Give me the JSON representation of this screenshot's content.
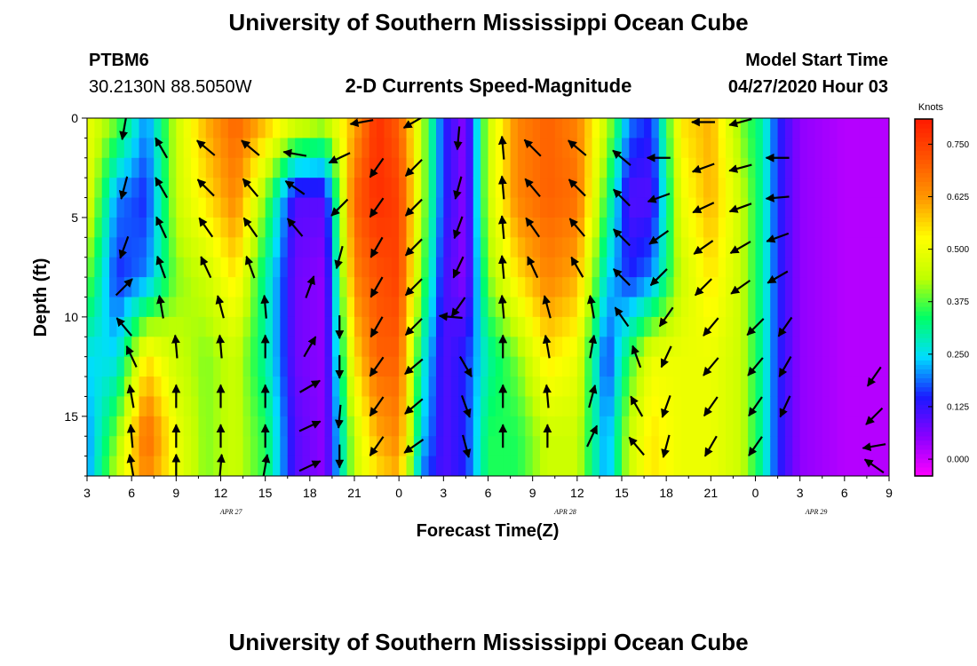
{
  "header": {
    "title": "University of Southern Mississippi Ocean Cube",
    "station": "PTBM6",
    "coords": "30.2130N 88.5050W",
    "subtitle": "2-D Currents Speed-Magnitude",
    "start_label": "Model Start Time",
    "start_value": "04/27/2020 Hour 03"
  },
  "footer": {
    "title": "University of Southern Mississippi Ocean Cube"
  },
  "colors": {
    "scale": [
      "#ff00ff",
      "#8a00ff",
      "#1a1aff",
      "#00ddff",
      "#00ff66",
      "#c0ff00",
      "#ffff00",
      "#ff9900",
      "#ff5500",
      "#ff1a00"
    ]
  },
  "chart_data": {
    "type": "heatmap",
    "title": "2-D Currents Speed-Magnitude",
    "xlabel": "Forecast Time(Z)",
    "ylabel": "Depth (ft)",
    "xlim": [
      0,
      54
    ],
    "ylim": [
      0,
      18
    ],
    "x_ticks": [
      0,
      3,
      6,
      9,
      12,
      15,
      18,
      21,
      24,
      27,
      30,
      33,
      36,
      39,
      42,
      45,
      48,
      51,
      54
    ],
    "x_tick_labels": [
      "3",
      "6",
      "9",
      "12",
      "15",
      "18",
      "21",
      "0",
      "3",
      "6",
      "9",
      "12",
      "15",
      "18",
      "21",
      "0",
      "3",
      "6",
      "9"
    ],
    "x_date_labels": [
      {
        "x": 9.7,
        "text": "APR 27"
      },
      {
        "x": 32.2,
        "text": "APR 28"
      },
      {
        "x": 49.1,
        "text": "APR 29"
      }
    ],
    "y_ticks": [
      0,
      5,
      10,
      15
    ],
    "y_tick_labels": [
      "0",
      "5",
      "10",
      "15"
    ],
    "colorbar": {
      "unit": "Knots",
      "range": [
        -0.04,
        0.81
      ],
      "ticks": [
        0.0,
        0.125,
        0.25,
        0.375,
        0.5,
        0.625,
        0.75
      ],
      "tick_labels": [
        "0.000",
        "0.125",
        "0.250",
        "0.375",
        "0.500",
        "0.625",
        "0.750"
      ]
    },
    "speed_profile": {
      "depth_levels_ft": [
        0,
        4,
        8,
        12,
        16,
        18
      ],
      "columns": [
        {
          "x": 0,
          "speeds": [
            0.5,
            0.5,
            0.4,
            0.25,
            0.2,
            0.2
          ]
        },
        {
          "x": 2,
          "speeds": [
            0.4,
            0.2,
            0.15,
            0.25,
            0.4,
            0.45
          ]
        },
        {
          "x": 4,
          "speeds": [
            0.2,
            0.15,
            0.2,
            0.55,
            0.7,
            0.65
          ]
        },
        {
          "x": 6,
          "speeds": [
            0.45,
            0.45,
            0.4,
            0.45,
            0.5,
            0.5
          ]
        },
        {
          "x": 8,
          "speeds": [
            0.6,
            0.55,
            0.45,
            0.4,
            0.4,
            0.4
          ]
        },
        {
          "x": 10,
          "speeds": [
            0.7,
            0.65,
            0.55,
            0.45,
            0.45,
            0.45
          ]
        },
        {
          "x": 12,
          "speeds": [
            0.6,
            0.4,
            0.3,
            0.3,
            0.35,
            0.35
          ]
        },
        {
          "x": 14,
          "speeds": [
            0.5,
            0.1,
            0.08,
            0.08,
            0.1,
            0.1
          ]
        },
        {
          "x": 16,
          "speeds": [
            0.45,
            0.1,
            0.05,
            0.05,
            0.05,
            0.05
          ]
        },
        {
          "x": 18,
          "speeds": [
            0.6,
            0.7,
            0.65,
            0.55,
            0.45,
            0.45
          ]
        },
        {
          "x": 19.5,
          "speeds": [
            0.78,
            0.78,
            0.72,
            0.7,
            0.6,
            0.55
          ]
        },
        {
          "x": 21,
          "speeds": [
            0.7,
            0.75,
            0.75,
            0.7,
            0.65,
            0.6
          ]
        },
        {
          "x": 22.5,
          "speeds": [
            0.45,
            0.45,
            0.4,
            0.3,
            0.25,
            0.2
          ]
        },
        {
          "x": 24,
          "speeds": [
            0.15,
            0.15,
            0.12,
            0.1,
            0.1,
            0.1
          ]
        },
        {
          "x": 25.5,
          "speeds": [
            0.05,
            0.05,
            0.05,
            0.15,
            0.15,
            0.15
          ]
        },
        {
          "x": 27,
          "speeds": [
            0.45,
            0.45,
            0.4,
            0.3,
            0.35,
            0.35
          ]
        },
        {
          "x": 29,
          "speeds": [
            0.65,
            0.65,
            0.55,
            0.4,
            0.35,
            0.35
          ]
        },
        {
          "x": 31,
          "speeds": [
            0.7,
            0.7,
            0.65,
            0.55,
            0.45,
            0.45
          ]
        },
        {
          "x": 33,
          "speeds": [
            0.65,
            0.68,
            0.6,
            0.5,
            0.45,
            0.45
          ]
        },
        {
          "x": 35,
          "speeds": [
            0.45,
            0.35,
            0.25,
            0.15,
            0.2,
            0.2
          ]
        },
        {
          "x": 36.5,
          "speeds": [
            0.2,
            0.1,
            0.15,
            0.35,
            0.45,
            0.45
          ]
        },
        {
          "x": 38,
          "speeds": [
            0.15,
            0.1,
            0.2,
            0.5,
            0.55,
            0.55
          ]
        },
        {
          "x": 40,
          "speeds": [
            0.55,
            0.5,
            0.45,
            0.5,
            0.5,
            0.5
          ]
        },
        {
          "x": 42,
          "speeds": [
            0.6,
            0.6,
            0.55,
            0.5,
            0.5,
            0.5
          ]
        },
        {
          "x": 44,
          "speeds": [
            0.4,
            0.45,
            0.45,
            0.45,
            0.45,
            0.45
          ]
        },
        {
          "x": 45.5,
          "speeds": [
            0.3,
            0.3,
            0.3,
            0.3,
            0.3,
            0.3
          ]
        },
        {
          "x": 46.5,
          "speeds": [
            0.15,
            0.15,
            0.15,
            0.15,
            0.15,
            0.15
          ]
        },
        {
          "x": 48,
          "speeds": [
            0.05,
            0.05,
            0.05,
            0.05,
            0.05,
            0.05
          ]
        },
        {
          "x": 51,
          "speeds": [
            0.02,
            0.02,
            0.02,
            0.02,
            0.02,
            0.02
          ]
        },
        {
          "x": 54,
          "speeds": [
            0.02,
            0.02,
            0.02,
            0.02,
            0.02,
            0.02
          ]
        }
      ]
    },
    "vectors": [
      {
        "x": 2.5,
        "d": 0.5,
        "a": 260
      },
      {
        "x": 2.5,
        "d": 3.5,
        "a": 255
      },
      {
        "x": 2.5,
        "d": 6.5,
        "a": 250
      },
      {
        "x": 2.5,
        "d": 8.5,
        "a": 45
      },
      {
        "x": 2.5,
        "d": 10.5,
        "a": 130
      },
      {
        "x": 3,
        "d": 12,
        "a": 115
      },
      {
        "x": 3,
        "d": 14,
        "a": 100
      },
      {
        "x": 3,
        "d": 16,
        "a": 95
      },
      {
        "x": 3,
        "d": 17.5,
        "a": 100
      },
      {
        "x": 5,
        "d": 1.5,
        "a": 120
      },
      {
        "x": 5,
        "d": 3.5,
        "a": 120
      },
      {
        "x": 5,
        "d": 5.5,
        "a": 115
      },
      {
        "x": 5,
        "d": 7.5,
        "a": 110
      },
      {
        "x": 5,
        "d": 9.5,
        "a": 100
      },
      {
        "x": 6,
        "d": 11.5,
        "a": 95
      },
      {
        "x": 6,
        "d": 14,
        "a": 90
      },
      {
        "x": 6,
        "d": 16,
        "a": 90
      },
      {
        "x": 6,
        "d": 17.5,
        "a": 90
      },
      {
        "x": 8,
        "d": 1.5,
        "a": 140
      },
      {
        "x": 8,
        "d": 3.5,
        "a": 135
      },
      {
        "x": 8,
        "d": 5.5,
        "a": 125
      },
      {
        "x": 8,
        "d": 7.5,
        "a": 115
      },
      {
        "x": 9,
        "d": 9.5,
        "a": 105
      },
      {
        "x": 9,
        "d": 11.5,
        "a": 95
      },
      {
        "x": 9,
        "d": 14,
        "a": 90
      },
      {
        "x": 9,
        "d": 16,
        "a": 90
      },
      {
        "x": 9,
        "d": 17.5,
        "a": 85
      },
      {
        "x": 11,
        "d": 1.5,
        "a": 140
      },
      {
        "x": 11,
        "d": 3.5,
        "a": 130
      },
      {
        "x": 11,
        "d": 5.5,
        "a": 125
      },
      {
        "x": 11,
        "d": 7.5,
        "a": 110
      },
      {
        "x": 12,
        "d": 9.5,
        "a": 95
      },
      {
        "x": 12,
        "d": 11.5,
        "a": 90
      },
      {
        "x": 12,
        "d": 14,
        "a": 90
      },
      {
        "x": 12,
        "d": 16,
        "a": 90
      },
      {
        "x": 12,
        "d": 17.5,
        "a": 80
      },
      {
        "x": 14,
        "d": 1.8,
        "a": 170
      },
      {
        "x": 14,
        "d": 3.5,
        "a": 145
      },
      {
        "x": 14,
        "d": 5.5,
        "a": 130
      },
      {
        "x": 15,
        "d": 8.5,
        "a": 70
      },
      {
        "x": 15,
        "d": 11.5,
        "a": 60
      },
      {
        "x": 15,
        "d": 13.5,
        "a": 30
      },
      {
        "x": 15,
        "d": 15.5,
        "a": 25
      },
      {
        "x": 15,
        "d": 17.5,
        "a": 25
      },
      {
        "x": 17,
        "d": 2,
        "a": 205
      },
      {
        "x": 17,
        "d": 4.5,
        "a": 225
      },
      {
        "x": 17,
        "d": 7,
        "a": 255
      },
      {
        "x": 17,
        "d": 10.5,
        "a": 270
      },
      {
        "x": 17,
        "d": 12.5,
        "a": 270
      },
      {
        "x": 17,
        "d": 15,
        "a": 265
      },
      {
        "x": 17,
        "d": 17,
        "a": 270
      },
      {
        "x": 18.5,
        "d": 0.2,
        "a": 190
      },
      {
        "x": 19.5,
        "d": 2.5,
        "a": 235
      },
      {
        "x": 19.5,
        "d": 4.5,
        "a": 235
      },
      {
        "x": 19.5,
        "d": 6.5,
        "a": 240
      },
      {
        "x": 19.5,
        "d": 8.5,
        "a": 240
      },
      {
        "x": 19.5,
        "d": 10.5,
        "a": 240
      },
      {
        "x": 19.5,
        "d": 12.5,
        "a": 235
      },
      {
        "x": 19.5,
        "d": 14.5,
        "a": 235
      },
      {
        "x": 19.5,
        "d": 16.5,
        "a": 235
      },
      {
        "x": 22,
        "d": 0.2,
        "a": 210
      },
      {
        "x": 22,
        "d": 2.5,
        "a": 225
      },
      {
        "x": 22,
        "d": 4.5,
        "a": 225
      },
      {
        "x": 22,
        "d": 6.5,
        "a": 225
      },
      {
        "x": 22,
        "d": 8.5,
        "a": 225
      },
      {
        "x": 22,
        "d": 10.5,
        "a": 225
      },
      {
        "x": 22,
        "d": 12.5,
        "a": 220
      },
      {
        "x": 22,
        "d": 14.5,
        "a": 220
      },
      {
        "x": 22,
        "d": 16.5,
        "a": 215
      },
      {
        "x": 25,
        "d": 1,
        "a": 265
      },
      {
        "x": 25,
        "d": 3.5,
        "a": 255
      },
      {
        "x": 25,
        "d": 5.5,
        "a": 250
      },
      {
        "x": 25,
        "d": 7.5,
        "a": 245
      },
      {
        "x": 25,
        "d": 9.5,
        "a": 235
      },
      {
        "x": 24.5,
        "d": 10,
        "a": 175
      },
      {
        "x": 25.5,
        "d": 12.5,
        "a": 300
      },
      {
        "x": 25.5,
        "d": 14.5,
        "a": 290
      },
      {
        "x": 25.5,
        "d": 16.5,
        "a": 285
      },
      {
        "x": 28,
        "d": 1.5,
        "a": 95
      },
      {
        "x": 28,
        "d": 3.5,
        "a": 95
      },
      {
        "x": 28,
        "d": 5.5,
        "a": 95
      },
      {
        "x": 28,
        "d": 7.5,
        "a": 95
      },
      {
        "x": 28,
        "d": 9.5,
        "a": 95
      },
      {
        "x": 28,
        "d": 11.5,
        "a": 90
      },
      {
        "x": 28,
        "d": 14,
        "a": 90
      },
      {
        "x": 28,
        "d": 16,
        "a": 90
      },
      {
        "x": 30,
        "d": 1.5,
        "a": 135
      },
      {
        "x": 30,
        "d": 3.5,
        "a": 130
      },
      {
        "x": 30,
        "d": 5.5,
        "a": 125
      },
      {
        "x": 30,
        "d": 7.5,
        "a": 115
      },
      {
        "x": 31,
        "d": 9.5,
        "a": 105
      },
      {
        "x": 31,
        "d": 11.5,
        "a": 100
      },
      {
        "x": 31,
        "d": 14,
        "a": 95
      },
      {
        "x": 31,
        "d": 16,
        "a": 90
      },
      {
        "x": 33,
        "d": 1.5,
        "a": 140
      },
      {
        "x": 33,
        "d": 3.5,
        "a": 135
      },
      {
        "x": 33,
        "d": 5.5,
        "a": 130
      },
      {
        "x": 33,
        "d": 7.5,
        "a": 120
      },
      {
        "x": 34,
        "d": 9.5,
        "a": 100
      },
      {
        "x": 34,
        "d": 11.5,
        "a": 80
      },
      {
        "x": 34,
        "d": 14,
        "a": 75
      },
      {
        "x": 34,
        "d": 16,
        "a": 65
      },
      {
        "x": 36,
        "d": 2,
        "a": 140
      },
      {
        "x": 36,
        "d": 4,
        "a": 135
      },
      {
        "x": 36,
        "d": 6,
        "a": 135
      },
      {
        "x": 36,
        "d": 8,
        "a": 135
      },
      {
        "x": 36,
        "d": 10,
        "a": 125
      },
      {
        "x": 37,
        "d": 12,
        "a": 110
      },
      {
        "x": 37,
        "d": 14.5,
        "a": 120
      },
      {
        "x": 37,
        "d": 16.5,
        "a": 130
      },
      {
        "x": 38.5,
        "d": 2,
        "a": 180
      },
      {
        "x": 38.5,
        "d": 4,
        "a": 200
      },
      {
        "x": 38.5,
        "d": 6,
        "a": 215
      },
      {
        "x": 38.5,
        "d": 8,
        "a": 225
      },
      {
        "x": 39,
        "d": 10,
        "a": 235
      },
      {
        "x": 39,
        "d": 12,
        "a": 245
      },
      {
        "x": 39,
        "d": 14.5,
        "a": 250
      },
      {
        "x": 39,
        "d": 16.5,
        "a": 255
      },
      {
        "x": 41.5,
        "d": 0.2,
        "a": 180
      },
      {
        "x": 41.5,
        "d": 2.5,
        "a": 200
      },
      {
        "x": 41.5,
        "d": 4.5,
        "a": 205
      },
      {
        "x": 41.5,
        "d": 6.5,
        "a": 215
      },
      {
        "x": 41.5,
        "d": 8.5,
        "a": 225
      },
      {
        "x": 42,
        "d": 10.5,
        "a": 230
      },
      {
        "x": 42,
        "d": 12.5,
        "a": 230
      },
      {
        "x": 42,
        "d": 14.5,
        "a": 235
      },
      {
        "x": 42,
        "d": 16.5,
        "a": 240
      },
      {
        "x": 44,
        "d": 0.2,
        "a": 195
      },
      {
        "x": 44,
        "d": 2.5,
        "a": 195
      },
      {
        "x": 44,
        "d": 4.5,
        "a": 200
      },
      {
        "x": 44,
        "d": 6.5,
        "a": 210
      },
      {
        "x": 44,
        "d": 8.5,
        "a": 215
      },
      {
        "x": 45,
        "d": 10.5,
        "a": 225
      },
      {
        "x": 45,
        "d": 12.5,
        "a": 230
      },
      {
        "x": 45,
        "d": 14.5,
        "a": 235
      },
      {
        "x": 45,
        "d": 16.5,
        "a": 235
      },
      {
        "x": 46.5,
        "d": 2,
        "a": 180
      },
      {
        "x": 46.5,
        "d": 4,
        "a": 185
      },
      {
        "x": 46.5,
        "d": 6,
        "a": 200
      },
      {
        "x": 46.5,
        "d": 8,
        "a": 210
      },
      {
        "x": 47,
        "d": 10.5,
        "a": 235
      },
      {
        "x": 47,
        "d": 12.5,
        "a": 240
      },
      {
        "x": 47,
        "d": 14.5,
        "a": 245
      },
      {
        "x": 53,
        "d": 13,
        "a": 235
      },
      {
        "x": 53,
        "d": 15,
        "a": 225
      },
      {
        "x": 53,
        "d": 16.5,
        "a": 190
      },
      {
        "x": 53,
        "d": 17.5,
        "a": 145
      }
    ]
  }
}
